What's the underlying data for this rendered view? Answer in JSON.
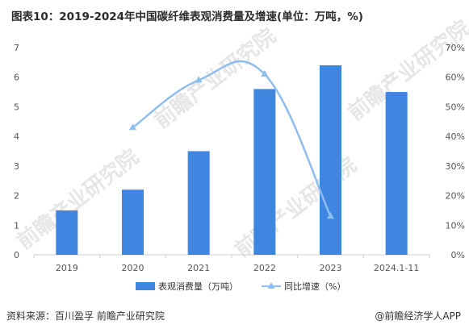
{
  "title": "图表10：2019-2024年中国碳纤维表观消费量及增速(单位：万吨，%)",
  "source": "资料来源：百川盈孚 前瞻产业研究院",
  "credit": "@前瞻经济学人APP",
  "watermark": "前瞻产业研究院",
  "colors": {
    "bar": "#3f86e0",
    "line": "#8fbdf0",
    "axis": "#cccccc",
    "text": "#555555"
  },
  "chart_data": {
    "type": "bar",
    "categories": [
      "2019",
      "2020",
      "2021",
      "2022",
      "2023",
      "2024.1-11"
    ],
    "series": [
      {
        "name": "表观消费量（万吨）",
        "type": "bar",
        "axis": "left",
        "values": [
          1.5,
          2.2,
          3.5,
          5.6,
          6.4,
          5.5
        ]
      },
      {
        "name": "同比增速（%）",
        "type": "line",
        "axis": "right",
        "values": [
          null,
          43,
          59,
          61,
          13,
          null
        ]
      }
    ],
    "y_left": {
      "min": 0,
      "max": 7,
      "ticks": [
        "0",
        "1",
        "2",
        "3",
        "4",
        "5",
        "6",
        "7"
      ]
    },
    "y_right": {
      "min": 0,
      "max": 70,
      "ticks": [
        "0%",
        "10%",
        "20%",
        "30%",
        "40%",
        "50%",
        "60%",
        "70%"
      ]
    },
    "grid": false,
    "legend_position": "bottom"
  }
}
